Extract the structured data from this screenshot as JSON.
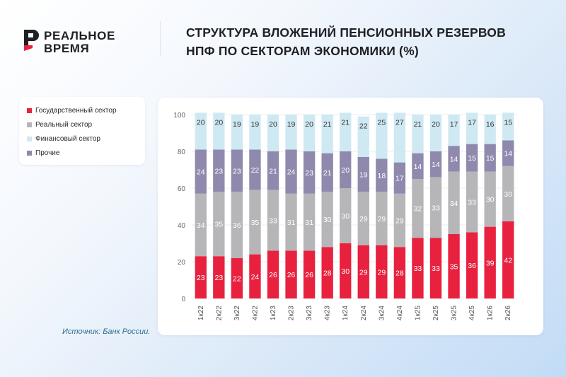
{
  "logo": {
    "line1": "РЕАЛЬНОЕ",
    "line2": "ВРЕМЯ"
  },
  "title": {
    "line1": "СТРУКТУРА ВЛОЖЕНИЙ ПЕНСИОННЫХ РЕЗЕРВОВ",
    "line2": "НПФ ПО СЕКТОРАМ ЭКОНОМИКИ (%)"
  },
  "legend": {
    "items": [
      {
        "label": "Государственный сектор",
        "color": "#e8213f"
      },
      {
        "label": "Реальный сектор",
        "color": "#b6b6b9"
      },
      {
        "label": "Финансовый сектор",
        "color": "#cfe9f3"
      },
      {
        "label": "Прочие",
        "color": "#8f8aad"
      }
    ]
  },
  "source": "Источник: Банк России.",
  "chart_data": {
    "type": "bar",
    "stacked": true,
    "categories": [
      "1к22",
      "2к22",
      "3к22",
      "4к22",
      "1к23",
      "2к23",
      "3к23",
      "4к23",
      "1к24",
      "2к24",
      "3к24",
      "4к24",
      "1к25",
      "2к25",
      "3к25",
      "4к25",
      "1к26",
      "2к26"
    ],
    "ylim": [
      0,
      100
    ],
    "yticks": [
      "0",
      "20",
      "40",
      "60",
      "80",
      "100"
    ],
    "series": [
      {
        "name": "Государственный сектор",
        "color": "#e8213f",
        "values": [
          23,
          23,
          22,
          24,
          26,
          26,
          26,
          28,
          30,
          29,
          29,
          28,
          33,
          33,
          35,
          36,
          39,
          42
        ]
      },
      {
        "name": "Реальный сектор",
        "color": "#b6b6b9",
        "values": [
          34,
          35,
          36,
          35,
          33,
          31,
          31,
          30,
          30,
          29,
          29,
          29,
          32,
          33,
          34,
          33,
          30,
          30
        ]
      },
      {
        "name": "Прочие",
        "color": "#8f8aad",
        "values": [
          24,
          23,
          23,
          22,
          21,
          24,
          23,
          21,
          20,
          19,
          18,
          17,
          14,
          14,
          14,
          15,
          15,
          14
        ]
      },
      {
        "name": "Финансовый сектор",
        "color": "#cfe9f3",
        "values": [
          20,
          20,
          19,
          19,
          20,
          19,
          20,
          21,
          21,
          22,
          25,
          27,
          21,
          20,
          17,
          17,
          16,
          15
        ]
      }
    ],
    "grid": true,
    "legend_position": "left"
  }
}
